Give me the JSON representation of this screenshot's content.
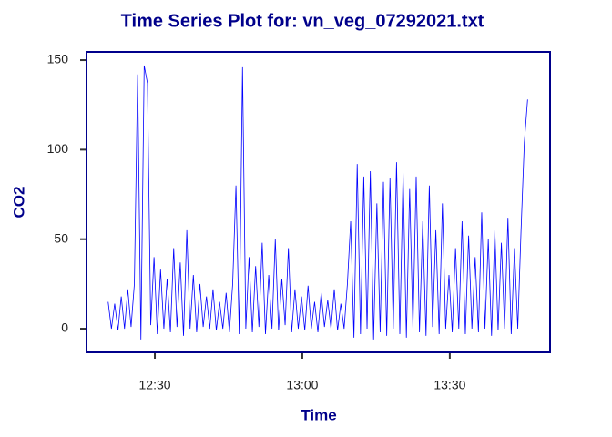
{
  "chart_data": {
    "type": "line",
    "title": "Time Series Plot for: vn_veg_07292021.txt",
    "x_label": "Time",
    "y_label": "CO2",
    "color": "#0000ff",
    "x": [
      "12:20:30",
      "12:21:10",
      "12:21:50",
      "12:22:30",
      "12:23:10",
      "12:23:50",
      "12:24:30",
      "12:25:10",
      "12:25:50",
      "12:26:30",
      "12:27:10",
      "12:27:50",
      "12:28:30",
      "12:29:10",
      "12:29:50",
      "12:30:30",
      "12:31:10",
      "12:31:50",
      "12:32:30",
      "12:33:10",
      "12:33:50",
      "12:34:30",
      "12:35:10",
      "12:35:50",
      "12:36:30",
      "12:37:10",
      "12:37:50",
      "12:38:30",
      "12:39:10",
      "12:39:50",
      "12:40:30",
      "12:41:10",
      "12:41:50",
      "12:42:30",
      "12:43:10",
      "12:43:50",
      "12:44:30",
      "12:45:10",
      "12:45:50",
      "12:46:30",
      "12:47:10",
      "12:47:50",
      "12:48:30",
      "12:49:10",
      "12:49:50",
      "12:50:30",
      "12:51:10",
      "12:51:50",
      "12:52:30",
      "12:53:10",
      "12:53:50",
      "12:54:30",
      "12:55:10",
      "12:55:50",
      "12:56:30",
      "12:57:10",
      "12:57:50",
      "12:58:30",
      "12:59:10",
      "12:59:50",
      "13:00:30",
      "13:01:10",
      "13:01:50",
      "13:02:30",
      "13:03:10",
      "13:03:50",
      "13:04:30",
      "13:05:10",
      "13:05:50",
      "13:06:30",
      "13:07:10",
      "13:07:50",
      "13:08:30",
      "13:09:10",
      "13:09:50",
      "13:10:30",
      "13:11:10",
      "13:11:50",
      "13:12:30",
      "13:13:10",
      "13:13:50",
      "13:14:30",
      "13:15:10",
      "13:15:50",
      "13:16:30",
      "13:17:10",
      "13:17:50",
      "13:18:30",
      "13:19:10",
      "13:19:50",
      "13:20:30",
      "13:21:10",
      "13:21:50",
      "13:22:30",
      "13:23:10",
      "13:23:50",
      "13:24:30",
      "13:25:10",
      "13:25:50",
      "13:26:30",
      "13:27:10",
      "13:27:50",
      "13:28:30",
      "13:29:10",
      "13:29:50",
      "13:30:30",
      "13:31:10",
      "13:31:50",
      "13:32:30",
      "13:33:10",
      "13:33:50",
      "13:34:30",
      "13:35:10",
      "13:35:50",
      "13:36:30",
      "13:37:10",
      "13:37:50",
      "13:38:30",
      "13:39:10",
      "13:39:50",
      "13:40:30",
      "13:41:10",
      "13:41:50",
      "13:42:30",
      "13:43:10",
      "13:43:50",
      "13:44:30",
      "13:45:10",
      "13:45:50"
    ],
    "values": [
      15,
      0,
      14,
      -1,
      18,
      0,
      22,
      1,
      25,
      142,
      -6,
      147,
      137,
      2,
      40,
      -3,
      33,
      0,
      28,
      -2,
      45,
      1,
      37,
      -4,
      55,
      0,
      30,
      -2,
      25,
      1,
      18,
      0,
      22,
      -1,
      15,
      0,
      20,
      -2,
      25,
      80,
      -3,
      146,
      0,
      40,
      -2,
      35,
      1,
      48,
      -3,
      30,
      0,
      50,
      -1,
      28,
      2,
      45,
      -2,
      22,
      0,
      18,
      -1,
      24,
      0,
      15,
      -2,
      20,
      1,
      16,
      0,
      22,
      -1,
      14,
      0,
      25,
      60,
      -5,
      92,
      -3,
      85,
      0,
      88,
      -6,
      70,
      -2,
      82,
      -4,
      84,
      0,
      93,
      -3,
      87,
      -5,
      78,
      0,
      85,
      -2,
      60,
      -4,
      80,
      1,
      55,
      -3,
      70,
      0,
      30,
      -2,
      45,
      0,
      60,
      -3,
      52,
      0,
      40,
      -2,
      65,
      0,
      50,
      -4,
      55,
      -1,
      48,
      0,
      62,
      -3,
      45,
      0,
      55,
      104,
      128
    ],
    "xlim": [
      "12:16:06",
      "13:50:24"
    ],
    "xticks": [
      "12:30",
      "13:00",
      "13:30"
    ],
    "ylim": [
      -13.2,
      154.6
    ],
    "yticks": [
      0,
      50,
      100,
      150
    ]
  }
}
